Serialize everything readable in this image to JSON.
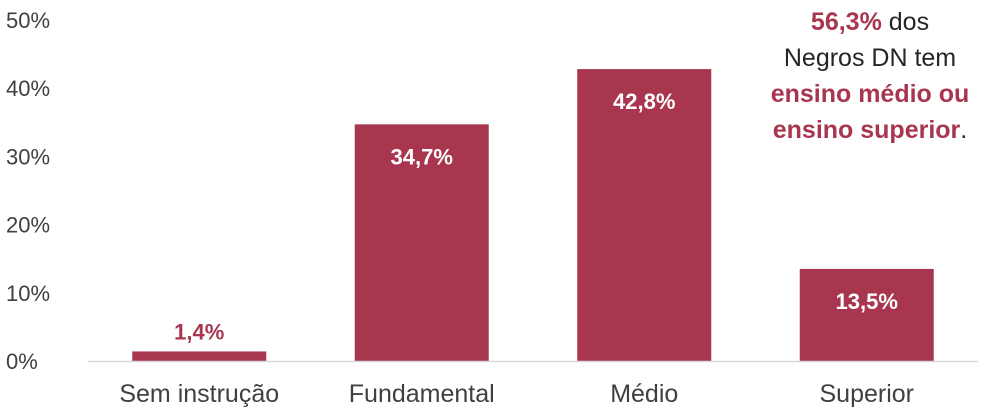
{
  "chart_data": {
    "type": "bar",
    "categories": [
      "Sem instrução",
      "Fundamental",
      "Médio",
      "Superior"
    ],
    "values": [
      1.4,
      34.7,
      42.8,
      13.5
    ],
    "value_labels": [
      "1,4%",
      "34,7%",
      "42,8%",
      "13,5%"
    ],
    "yticks": [
      "0%",
      "10%",
      "20%",
      "30%",
      "40%",
      "50%"
    ],
    "ylim": [
      0,
      50
    ],
    "grid": false,
    "bar_color": "#a8364f",
    "label_inside_color": "#ffffff",
    "label_outside_color": "#a8364f"
  },
  "annotation": {
    "line1_highlight": "56,3%",
    "line1_rest": " dos",
    "line2": "Negros DN tem",
    "line3_highlight": "ensino médio ou",
    "line4_highlight": "ensino superior",
    "line4_rest": "."
  }
}
